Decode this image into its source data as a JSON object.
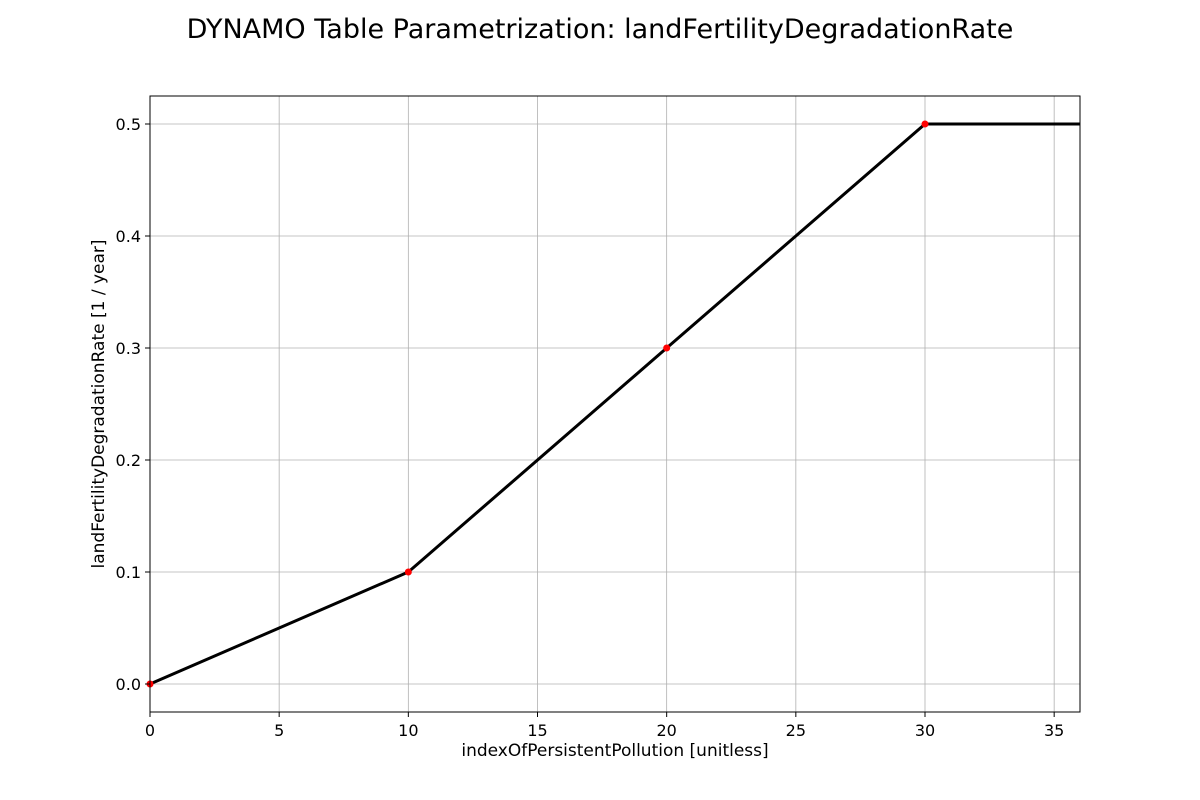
{
  "chart_data": {
    "type": "line",
    "title": "DYNAMO Table Parametrization: landFertilityDegradationRate",
    "xlabel": "indexOfPersistentPollution [unitless]",
    "ylabel": "landFertilityDegradationRate [1 / year]",
    "xlim": [
      0,
      36
    ],
    "ylim": [
      -0.025,
      0.525
    ],
    "x_ticks": [
      0,
      5,
      10,
      15,
      20,
      25,
      30,
      35
    ],
    "y_ticks": [
      0.0,
      0.1,
      0.2,
      0.3,
      0.4,
      0.5
    ],
    "x_tick_labels": [
      "0",
      "5",
      "10",
      "15",
      "20",
      "25",
      "30",
      "35"
    ],
    "y_tick_labels": [
      "0.0",
      "0.1",
      "0.2",
      "0.3",
      "0.4",
      "0.5"
    ],
    "grid": true,
    "series": [
      {
        "style": "line",
        "color": "#000000",
        "x": [
          0,
          10,
          20,
          30,
          36
        ],
        "y": [
          0.0,
          0.1,
          0.3,
          0.5,
          0.5
        ]
      },
      {
        "style": "markers",
        "color": "#ff0000",
        "x": [
          0,
          10,
          20,
          30
        ],
        "y": [
          0.0,
          0.1,
          0.3,
          0.5
        ]
      }
    ]
  }
}
